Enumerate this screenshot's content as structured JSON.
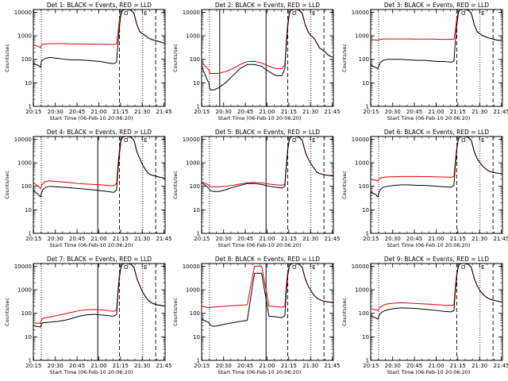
{
  "chart_data": {
    "type": "line",
    "layout": "3x3 grid of panels",
    "shared": {
      "xlabel": "Start Time (06-Feb-10 20:06:20)",
      "ylabel": "Counts/sec",
      "y_scale": "log",
      "ylim": [
        1,
        13000
      ],
      "y_ticks": [
        1,
        10,
        100,
        1000,
        10000
      ],
      "y_tick_labels": [
        "1",
        "10",
        "100",
        "1000",
        "10000"
      ],
      "xlim": [
        8.5,
        99.5
      ],
      "x_ticks": [
        8.7,
        23.7,
        38.7,
        53.7,
        68.7,
        83.7,
        98.7
      ],
      "x_tick_labels": [
        "20:15",
        "20:30",
        "20:45",
        "21:00",
        "21:15",
        "21:30",
        "21:45"
      ],
      "x_unit": "minutes after 20:06:20",
      "annotation_glyphs": [
        "O",
        "E"
      ],
      "annotation_glyph_x": [
        72.5,
        86.0
      ],
      "series_colors": {
        "Events": "#000000",
        "LLD": "#e00000"
      },
      "marker_lines": [
        {
          "x": 14.0,
          "style": "dotted"
        },
        {
          "x": 68.0,
          "style": "dashed"
        },
        {
          "x": 84.0,
          "style": "dotted"
        },
        {
          "x": 93.0,
          "style": "dashed"
        }
      ],
      "x_samples": [
        8.5,
        10,
        12,
        13.5,
        14,
        15,
        17,
        20,
        25,
        30,
        35,
        40,
        45,
        50,
        55,
        60,
        64,
        66,
        67,
        68,
        69,
        70,
        72,
        74,
        76,
        78,
        80,
        82,
        84,
        86,
        88,
        90,
        92,
        94,
        96,
        98,
        99.5
      ]
    },
    "panels": [
      {
        "title": "Det 1: BLACK = Events, RED = LLD",
        "solid_lines": [],
        "series": [
          {
            "name": "Events",
            "values": [
              70,
              60,
              55,
              45,
              80,
              95,
              110,
              120,
              110,
              100,
              95,
              95,
              90,
              85,
              80,
              70,
              65,
              75,
              500,
              2500,
              8000,
              12000,
              13000,
              13000,
              12000,
              9000,
              3000,
              1500,
              1200,
              1000,
              800,
              700,
              650,
              600,
              550,
              500,
              480
            ]
          },
          {
            "name": "LLD",
            "values": [
              400,
              380,
              350,
              320,
              400,
              430,
              450,
              460,
              460,
              460,
              450,
              450,
              440,
              440,
              440,
              430,
              420,
              450,
              1500,
              5000,
              10000,
              12500,
              13000,
              13000,
              12000,
              9000,
              3000,
              1500,
              1200,
              1000,
              800,
              700,
              650,
              600,
              550,
              500,
              480
            ]
          }
        ]
      },
      {
        "title": "Det 2: BLACK = Events, RED = LLD",
        "solid_lines": [
          21,
          53
        ],
        "series": [
          {
            "name": "Events",
            "values": [
              50,
              30,
              15,
              10,
              6,
              5,
              5,
              6,
              10,
              20,
              40,
              60,
              60,
              50,
              30,
              20,
              20,
              40,
              400,
              2500,
              8000,
              12000,
              13000,
              13000,
              12000,
              9000,
              3000,
              1500,
              1000,
              800,
              500,
              300,
              250,
              200,
              150,
              130,
              120
            ]
          },
          {
            "name": "LLD",
            "values": [
              80,
              60,
              45,
              35,
              25,
              25,
              25,
              25,
              30,
              40,
              60,
              80,
              80,
              70,
              50,
              40,
              40,
              60,
              600,
              3500,
              9000,
              12500,
              13000,
              13000,
              12000,
              9000,
              3000,
              1500,
              1000,
              800,
              500,
              300,
              250,
              200,
              150,
              130,
              120
            ]
          }
        ]
      },
      {
        "title": "Det 3: BLACK = Events, RED = LLD",
        "solid_lines": [],
        "series": [
          {
            "name": "Events",
            "values": [
              60,
              50,
              45,
              40,
              50,
              70,
              90,
              100,
              100,
              100,
              95,
              90,
              90,
              85,
              80,
              80,
              75,
              85,
              600,
              3000,
              9000,
              12500,
              13000,
              13000,
              12000,
              9000,
              3000,
              1500,
              1200,
              1000,
              900,
              800,
              750,
              700,
              650,
              620,
              600
            ]
          },
          {
            "name": "LLD",
            "values": [
              700,
              680,
              660,
              650,
              680,
              700,
              720,
              730,
              730,
              730,
              730,
              720,
              720,
              720,
              710,
              700,
              700,
              720,
              1800,
              5500,
              10000,
              12500,
              13000,
              13000,
              12000,
              9000,
              3000,
              1500,
              1200,
              1000,
              900,
              800,
              750,
              700,
              650,
              620,
              600
            ]
          }
        ]
      },
      {
        "title": "Det 4: BLACK = Events, RED = LLD",
        "solid_lines": [
          53
        ],
        "series": [
          {
            "name": "Events",
            "values": [
              70,
              55,
              45,
              35,
              50,
              70,
              90,
              100,
              95,
              90,
              85,
              80,
              75,
              70,
              65,
              60,
              55,
              70,
              500,
              2500,
              8000,
              12000,
              13000,
              13000,
              12000,
              9000,
              3000,
              1500,
              800,
              500,
              350,
              300,
              280,
              260,
              240,
              230,
              220
            ]
          },
          {
            "name": "LLD",
            "values": [
              150,
              120,
              100,
              80,
              100,
              130,
              160,
              170,
              160,
              150,
              140,
              130,
              125,
              120,
              115,
              110,
              105,
              130,
              900,
              4000,
              9500,
              12500,
              13000,
              13000,
              12000,
              9000,
              3000,
              1500,
              800,
              500,
              350,
              300,
              280,
              260,
              240,
              230,
              220
            ]
          }
        ]
      },
      {
        "title": "Det 5: BLACK = Events, RED = LLD",
        "solid_lines": [
          53
        ],
        "series": [
          {
            "name": "Events",
            "values": [
              140,
              120,
              100,
              80,
              70,
              65,
              60,
              60,
              70,
              90,
              110,
              130,
              130,
              120,
              100,
              90,
              85,
              100,
              700,
              3500,
              9000,
              12500,
              13000,
              13000,
              12000,
              9000,
              3000,
              1500,
              900,
              600,
              400,
              350,
              320,
              300,
              290,
              280,
              270
            ]
          },
          {
            "name": "LLD",
            "values": [
              160,
              140,
              125,
              110,
              100,
              95,
              95,
              95,
              100,
              110,
              125,
              140,
              145,
              140,
              125,
              115,
              110,
              125,
              900,
              4000,
              9500,
              12500,
              13000,
              13000,
              12000,
              9000,
              3000,
              1500,
              900,
              600,
              400,
              350,
              320,
              300,
              290,
              280,
              270
            ]
          }
        ]
      },
      {
        "title": "Det 6: BLACK = Events, RED = LLD",
        "solid_lines": [],
        "series": [
          {
            "name": "Events",
            "values": [
              60,
              50,
              45,
              35,
              50,
              70,
              90,
              100,
              110,
              115,
              115,
              110,
              110,
              105,
              100,
              95,
              90,
              110,
              800,
              4000,
              9500,
              12500,
              13000,
              13000,
              12000,
              9000,
              3000,
              1500,
              1000,
              700,
              550,
              450,
              400,
              380,
              360,
              350,
              340
            ]
          },
          {
            "name": "LLD",
            "values": [
              200,
              190,
              180,
              170,
              190,
              220,
              240,
              250,
              255,
              260,
              260,
              260,
              255,
              255,
              250,
              245,
              240,
              260,
              1200,
              4500,
              10000,
              12500,
              13000,
              13000,
              12000,
              9000,
              3000,
              1500,
              1000,
              700,
              550,
              450,
              400,
              380,
              360,
              350,
              340
            ]
          }
        ]
      },
      {
        "title": "Det 7: BLACK = Events, RED = LLD",
        "solid_lines": [
          53
        ],
        "series": [
          {
            "name": "Events",
            "values": [
              30,
              28,
              27,
              26,
              35,
              40,
              40,
              42,
              45,
              50,
              60,
              75,
              85,
              90,
              85,
              80,
              75,
              90,
              700,
              3500,
              9000,
              12500,
              13000,
              13000,
              12000,
              9000,
              3000,
              1500,
              800,
              500,
              350,
              280,
              250,
              230,
              220,
              210,
              200
            ]
          },
          {
            "name": "LLD",
            "values": [
              40,
              38,
              38,
              37,
              50,
              60,
              65,
              70,
              80,
              95,
              110,
              130,
              140,
              145,
              140,
              130,
              120,
              140,
              1000,
              4500,
              9500,
              12500,
              13000,
              13000,
              12000,
              9000,
              3000,
              1500,
              800,
              500,
              350,
              280,
              250,
              230,
              220,
              210,
              200
            ]
          }
        ]
      },
      {
        "title": "Det 8: BLACK = Events, RED = LLD",
        "solid_lines": [
          53
        ],
        "series": [
          {
            "name": "Events",
            "values": [
              60,
              50,
              45,
              40,
              35,
              30,
              28,
              30,
              35,
              40,
              45,
              50,
              5000,
              5000,
              75,
              70,
              65,
              80,
              800,
              4000,
              9500,
              12500,
              13000,
              13000,
              12000,
              9000,
              3000,
              1500,
              900,
              600,
              450,
              380,
              340,
              320,
              300,
              290,
              280
            ]
          },
          {
            "name": "LLD",
            "values": [
              200,
              190,
              180,
              170,
              175,
              180,
              185,
              190,
              200,
              210,
              220,
              230,
              10000,
              10000,
              200,
              190,
              180,
              200,
              1500,
              5500,
              10000,
              12500,
              13000,
              13000,
              12000,
              9000,
              3000,
              1500,
              900,
              600,
              450,
              380,
              340,
              320,
              300,
              290,
              280
            ]
          }
        ]
      },
      {
        "title": "Det 9: BLACK = Events, RED = LLD",
        "solid_lines": [],
        "series": [
          {
            "name": "Events",
            "values": [
              80,
              70,
              65,
              55,
              70,
              95,
              120,
              140,
              160,
              170,
              165,
              160,
              150,
              140,
              130,
              120,
              115,
              130,
              900,
              4000,
              9500,
              12500,
              13000,
              13000,
              12000,
              9000,
              3000,
              1500,
              900,
              650,
              500,
              420,
              380,
              350,
              330,
              310,
              300
            ]
          },
          {
            "name": "LLD",
            "values": [
              160,
              150,
              140,
              130,
              150,
              180,
              220,
              250,
              270,
              280,
              270,
              260,
              250,
              240,
              230,
              220,
              215,
              230,
              1400,
              5000,
              10000,
              12500,
              13000,
              13000,
              12000,
              9000,
              3000,
              1500,
              900,
              650,
              500,
              420,
              380,
              350,
              330,
              310,
              300
            ]
          }
        ]
      }
    ]
  }
}
